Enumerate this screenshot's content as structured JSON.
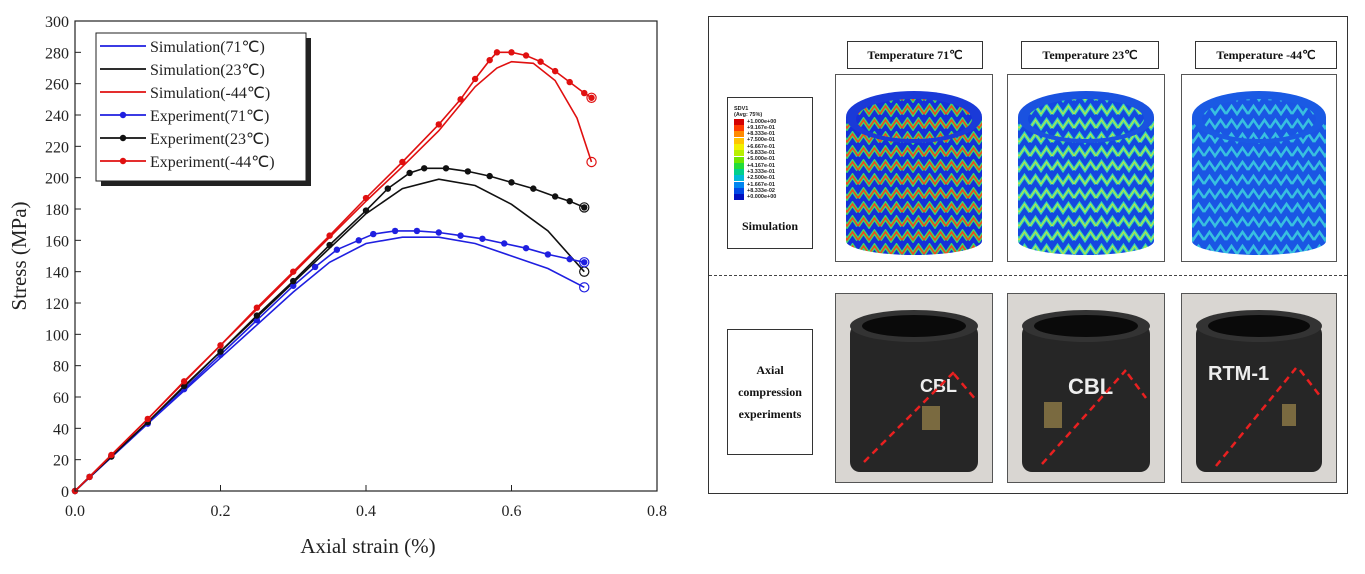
{
  "chart_data": {
    "type": "line",
    "xlabel": "Axial strain (%)",
    "ylabel": "Stress (MPa)",
    "xlim": [
      0,
      0.8
    ],
    "ylim": [
      0,
      300
    ],
    "xticks": [
      "0.0",
      "0.2",
      "0.4",
      "0.6",
      "0.8"
    ],
    "yticks": [
      "0",
      "20",
      "40",
      "60",
      "80",
      "100",
      "120",
      "140",
      "160",
      "180",
      "200",
      "220",
      "240",
      "260",
      "280",
      "300"
    ],
    "legend_position": "top-left",
    "series": [
      {
        "name": "Simulation(71℃)",
        "color": "#1f1fe0",
        "style": "line",
        "x": [
          0,
          0.1,
          0.2,
          0.3,
          0.35,
          0.4,
          0.45,
          0.5,
          0.55,
          0.6,
          0.65,
          0.7
        ],
        "y": [
          0,
          43,
          85,
          127,
          146,
          158,
          162,
          162,
          158,
          150,
          142,
          130
        ]
      },
      {
        "name": "Simulation(23℃)",
        "color": "#111111",
        "style": "line",
        "x": [
          0,
          0.1,
          0.2,
          0.3,
          0.35,
          0.4,
          0.45,
          0.5,
          0.55,
          0.6,
          0.65,
          0.7
        ],
        "y": [
          0,
          44,
          89,
          133,
          155,
          177,
          193,
          199,
          195,
          183,
          166,
          140
        ]
      },
      {
        "name": "Simulation(-44℃)",
        "color": "#e01010",
        "style": "line",
        "x": [
          0,
          0.1,
          0.2,
          0.3,
          0.4,
          0.45,
          0.5,
          0.55,
          0.58,
          0.6,
          0.63,
          0.66,
          0.69,
          0.71
        ],
        "y": [
          0,
          46,
          93,
          139,
          185,
          207,
          230,
          258,
          270,
          274,
          273,
          262,
          238,
          210
        ]
      },
      {
        "name": "Experiment(71℃)",
        "color": "#1f1fe0",
        "style": "line-marker",
        "x": [
          0,
          0.02,
          0.05,
          0.1,
          0.15,
          0.2,
          0.25,
          0.3,
          0.33,
          0.36,
          0.39,
          0.41,
          0.44,
          0.47,
          0.5,
          0.53,
          0.56,
          0.59,
          0.62,
          0.65,
          0.68,
          0.7
        ],
        "y": [
          0,
          9,
          22,
          43,
          65,
          87,
          109,
          131,
          143,
          154,
          160,
          164,
          166,
          166,
          165,
          163,
          161,
          158,
          155,
          151,
          148,
          146
        ]
      },
      {
        "name": "Experiment(23℃)",
        "color": "#111111",
        "style": "line-marker",
        "x": [
          0,
          0.02,
          0.05,
          0.1,
          0.15,
          0.2,
          0.25,
          0.3,
          0.35,
          0.4,
          0.43,
          0.46,
          0.48,
          0.51,
          0.54,
          0.57,
          0.6,
          0.63,
          0.66,
          0.68,
          0.7
        ],
        "y": [
          0,
          9,
          22,
          44,
          67,
          89,
          112,
          134,
          157,
          179,
          193,
          203,
          206,
          206,
          204,
          201,
          197,
          193,
          188,
          185,
          181
        ]
      },
      {
        "name": "Experiment(-44℃)",
        "color": "#e01010",
        "style": "line-marker",
        "x": [
          0,
          0.02,
          0.05,
          0.1,
          0.15,
          0.2,
          0.25,
          0.3,
          0.35,
          0.4,
          0.45,
          0.5,
          0.53,
          0.55,
          0.57,
          0.58,
          0.6,
          0.62,
          0.64,
          0.66,
          0.68,
          0.7,
          0.71
        ],
        "y": [
          0,
          9,
          23,
          46,
          70,
          93,
          117,
          140,
          163,
          187,
          210,
          234,
          250,
          263,
          275,
          280,
          280,
          278,
          274,
          268,
          261,
          254,
          251
        ]
      }
    ]
  },
  "panel": {
    "temperatures": [
      "Temperature 71℃",
      "Temperature 23℃",
      "Temperature -44℃"
    ],
    "simulation_label": "Simulation",
    "experiment_label_lines": [
      "Axial",
      "compression",
      "experiments"
    ],
    "contour_legend": {
      "title_lines": [
        "SDV1",
        "(Avg: 75%)"
      ],
      "values": [
        "+1.000e+00",
        "+9.167e-01",
        "+8.333e-01",
        "+7.500e-01",
        "+6.667e-01",
        "+5.833e-01",
        "+5.000e-01",
        "+4.167e-01",
        "+3.333e-01",
        "+2.500e-01",
        "+1.667e-01",
        "+8.333e-02",
        "+0.000e+00"
      ],
      "colors": [
        "#d40000",
        "#ff3b00",
        "#ff8a00",
        "#ffc400",
        "#f2f000",
        "#b8f000",
        "#6fe600",
        "#22dc3a",
        "#00d08c",
        "#00bad8",
        "#0086f0",
        "#0048e6",
        "#0010c0"
      ]
    },
    "specimen_marks": [
      "CBL",
      "CBL",
      "RTM-1"
    ]
  }
}
